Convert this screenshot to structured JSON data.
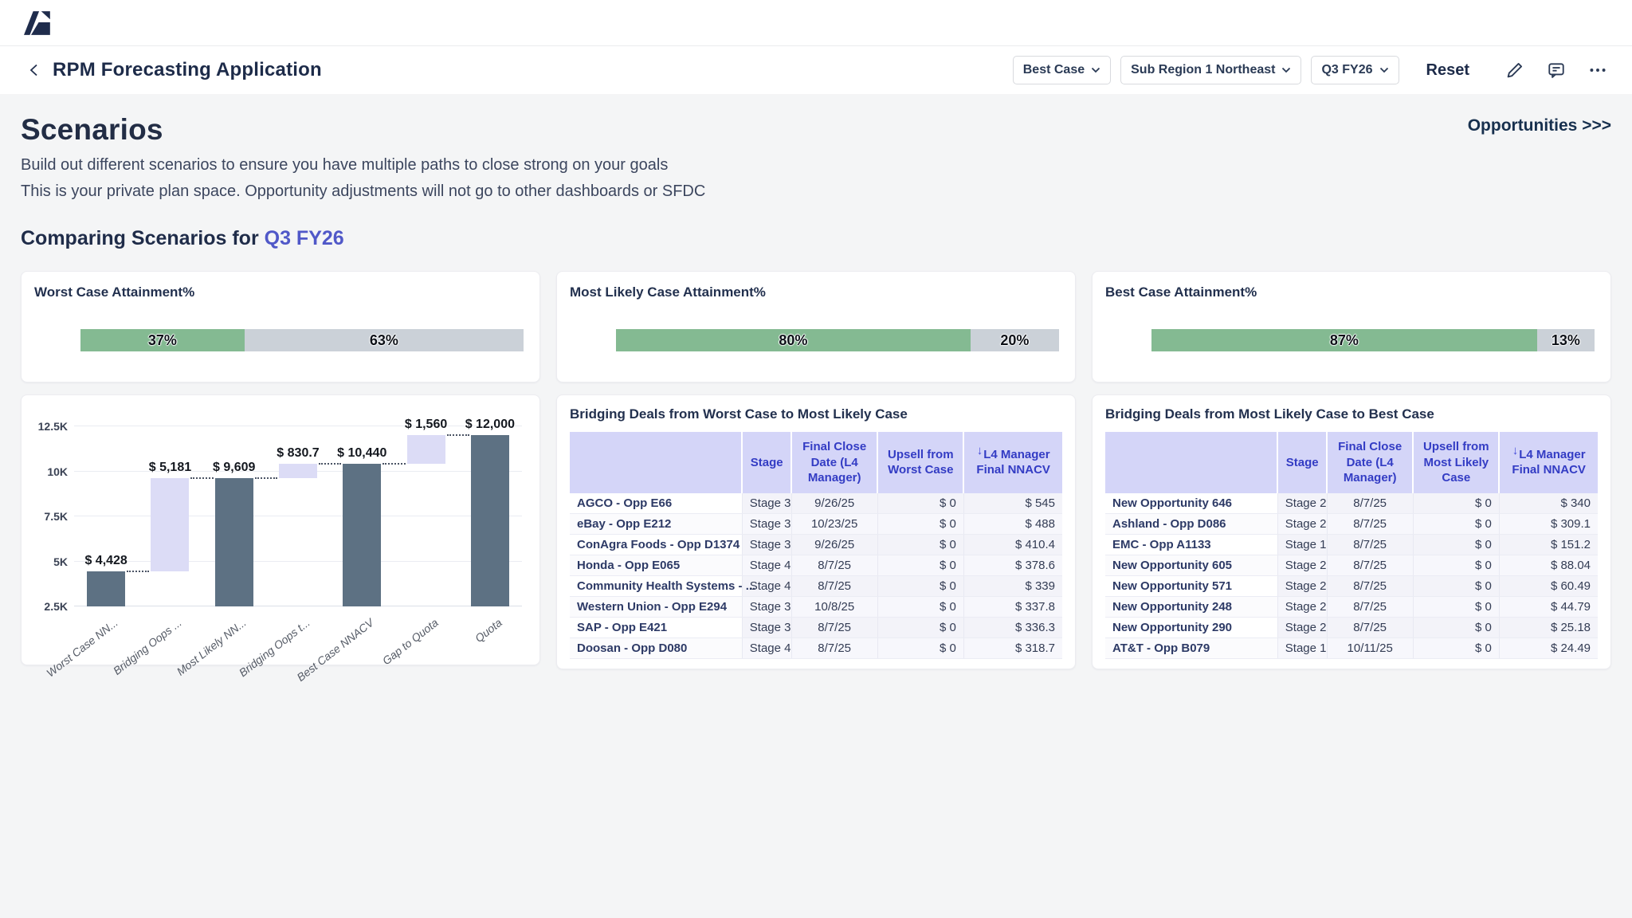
{
  "topbar": {
    "logo": "anaplan-logo"
  },
  "header": {
    "back_icon": "chevron-left",
    "title": "RPM Forecasting Application",
    "filters": [
      {
        "label": "Best Case"
      },
      {
        "label": "Sub Region 1 Northeast"
      },
      {
        "label": "Q3 FY26"
      }
    ],
    "reset_label": "Reset",
    "icons": [
      "edit-pencil",
      "comment",
      "more-ellipsis"
    ]
  },
  "page": {
    "title": "Scenarios",
    "subtitle1": "Build out different scenarios to ensure you have multiple paths to close strong on your goals",
    "subtitle2": "This is your private plan space. Opportunity adjustments will not go to other dashboards or SFDC",
    "opportunities_link": "Opportunities >>>",
    "comparing_prefix": "Comparing Scenarios for ",
    "comparing_period": "Q3 FY26"
  },
  "colors": {
    "attained_green": "#84ba92",
    "remaining_gray": "#cbd1d8",
    "solid_bar": "#5d7183",
    "light_bar": "#dcdcf6",
    "accent_purple": "#5058c8",
    "header_lavender": "#d4d5f8",
    "header_text_indigo": "#333cc4",
    "navy_text": "#22304e"
  },
  "attainment_cards": [
    {
      "title": "Worst Case Attainment%",
      "attained_pct": 37,
      "attained_label": "37%",
      "remaining_pct": 63,
      "remaining_label": "63%"
    },
    {
      "title": "Most Likely Case Attainment%",
      "attained_pct": 80,
      "attained_label": "80%",
      "remaining_pct": 20,
      "remaining_label": "20%"
    },
    {
      "title": "Best Case Attainment%",
      "attained_pct": 87,
      "attained_label": "87%",
      "remaining_pct": 13,
      "remaining_label": "13%"
    }
  ],
  "chart_data": {
    "type": "bar",
    "subtype": "waterfall",
    "title": "",
    "ylim": [
      2500,
      12900
    ],
    "grid": true,
    "y_ticks": [
      {
        "v": 2500,
        "label": "2.5K"
      },
      {
        "v": 5000,
        "label": "5K"
      },
      {
        "v": 7500,
        "label": "7.5K"
      },
      {
        "v": 10000,
        "label": "10K"
      },
      {
        "v": 12500,
        "label": "12.5K"
      }
    ],
    "categories": [
      "Worst Case NN...",
      "Bridging Oops ...",
      "Most Likely NN...",
      "Bridging Oops t...",
      "Best Case NNACV",
      "Gap to Quota",
      "Quota"
    ],
    "bars": [
      {
        "label": "Worst Case NN...",
        "value_label": "$ 4,428",
        "start": 2500,
        "end": 4428,
        "style": "solid"
      },
      {
        "label": "Bridging Oops ...",
        "value_label": "$ 5,181",
        "start": 4428,
        "end": 9609,
        "style": "light"
      },
      {
        "label": "Most Likely NN...",
        "value_label": "$ 9,609",
        "start": 2500,
        "end": 9609,
        "style": "solid"
      },
      {
        "label": "Bridging Oops t...",
        "value_label": "$ 830.7",
        "start": 9609,
        "end": 10440,
        "style": "light"
      },
      {
        "label": "Best Case NNACV",
        "value_label": "$ 10,440",
        "start": 2500,
        "end": 10440,
        "style": "solid"
      },
      {
        "label": "Gap to Quota",
        "value_label": "$ 1,560",
        "start": 10440,
        "end": 12000,
        "style": "light"
      },
      {
        "label": "Quota",
        "value_label": "$ 12,000",
        "start": 2500,
        "end": 12000,
        "style": "solid"
      }
    ]
  },
  "tables": [
    {
      "title": "Bridging Deals from Worst Case to Most Likely Case",
      "columns": [
        "",
        "Stage",
        "Final Close Date (L4 Manager)",
        "Upsell from Worst Case",
        "L4 Manager Final NNACV"
      ],
      "sorted_column_index": 4,
      "sort_direction": "desc",
      "rows": [
        [
          "AGCO - Opp E66",
          "Stage 3",
          "9/26/25",
          "$ 0",
          "$ 545"
        ],
        [
          "eBay - Opp E212",
          "Stage 3",
          "10/23/25",
          "$ 0",
          "$ 488"
        ],
        [
          "ConAgra Foods - Opp D1374",
          "Stage 3",
          "9/26/25",
          "$ 0",
          "$ 410.4"
        ],
        [
          "Honda - Opp E065",
          "Stage 4",
          "8/7/25",
          "$ 0",
          "$ 378.6"
        ],
        [
          "Community Health Systems - ...",
          "Stage 4",
          "8/7/25",
          "$ 0",
          "$ 339"
        ],
        [
          "Western Union - Opp E294",
          "Stage 3",
          "10/8/25",
          "$ 0",
          "$ 337.8"
        ],
        [
          "SAP - Opp E421",
          "Stage 3",
          "8/7/25",
          "$ 0",
          "$ 336.3"
        ],
        [
          "Doosan - Opp D080",
          "Stage 4",
          "8/7/25",
          "$ 0",
          "$ 318.7"
        ]
      ]
    },
    {
      "title": "Bridging Deals from Most Likely Case to Best Case",
      "columns": [
        "",
        "Stage",
        "Final Close Date (L4 Manager)",
        "Upsell from Most Likely Case",
        "L4 Manager Final NNACV"
      ],
      "sorted_column_index": 4,
      "sort_direction": "desc",
      "rows": [
        [
          "New Opportunity 646",
          "Stage 2",
          "8/7/25",
          "$ 0",
          "$ 340"
        ],
        [
          "Ashland - Opp D086",
          "Stage 2",
          "8/7/25",
          "$ 0",
          "$ 309.1"
        ],
        [
          "EMC - Opp A1133",
          "Stage 1",
          "8/7/25",
          "$ 0",
          "$ 151.2"
        ],
        [
          "New Opportunity 605",
          "Stage 2",
          "8/7/25",
          "$ 0",
          "$ 88.04"
        ],
        [
          "New Opportunity 571",
          "Stage 2",
          "8/7/25",
          "$ 0",
          "$ 60.49"
        ],
        [
          "New Opportunity 248",
          "Stage 2",
          "8/7/25",
          "$ 0",
          "$ 44.79"
        ],
        [
          "New Opportunity 290",
          "Stage 2",
          "8/7/25",
          "$ 0",
          "$ 25.18"
        ],
        [
          "AT&T - Opp B079",
          "Stage 1",
          "10/11/25",
          "$ 0",
          "$ 24.49"
        ]
      ]
    }
  ]
}
